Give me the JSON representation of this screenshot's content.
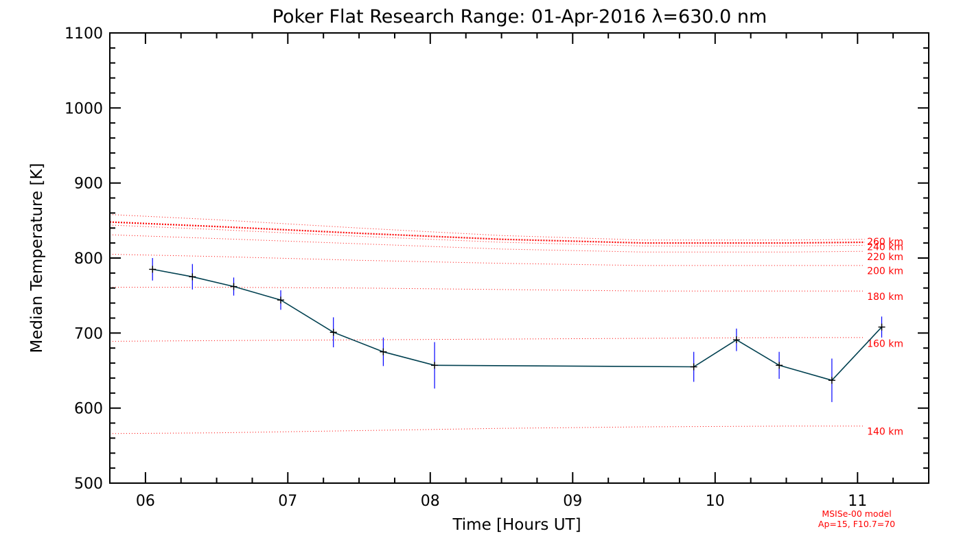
{
  "chart_data": {
    "type": "line",
    "title": "Poker Flat Research Range: 01-Apr-2016 λ=630.0 nm",
    "xlabel": "Time [Hours UT]",
    "ylabel": "Median Temperature [K]",
    "xlim": [
      5.75,
      11.5
    ],
    "ylim": [
      500,
      1100
    ],
    "xticks": [
      6,
      7,
      8,
      9,
      10,
      11
    ],
    "xtick_labels": [
      "06",
      "07",
      "08",
      "09",
      "10",
      "11"
    ],
    "yticks": [
      500,
      600,
      700,
      800,
      900,
      1000,
      1100
    ],
    "ytick_labels": [
      "500",
      "600",
      "700",
      "800",
      "900",
      "1000",
      "1100"
    ],
    "series": [
      {
        "name": "Median Temperature",
        "color": "#004050",
        "errorbar_color": "#0000ff",
        "x": [
          6.05,
          6.33,
          6.62,
          6.95,
          7.32,
          7.67,
          8.03,
          9.85,
          10.15,
          10.45,
          10.82,
          11.17
        ],
        "y": [
          785,
          775,
          762,
          744,
          701,
          675,
          657,
          655,
          691,
          657,
          637,
          708
        ],
        "err": [
          15,
          17,
          12,
          13,
          20,
          19,
          31,
          20,
          15,
          18,
          29,
          14
        ]
      }
    ],
    "model_curves": {
      "color": "#ff0000",
      "x": [
        5.75,
        6.5,
        7.5,
        8.5,
        9.5,
        10.5,
        11.05
      ],
      "curves": [
        {
          "label": "140 km",
          "y": [
            566,
            567,
            570,
            573,
            575,
            576,
            576
          ]
        },
        {
          "label": "160 km",
          "y": [
            689,
            690,
            691,
            692,
            693,
            694,
            694
          ]
        },
        {
          "label": "180 km",
          "y": [
            761,
            761,
            760,
            758,
            756,
            756,
            756
          ]
        },
        {
          "label": "200 km",
          "y": [
            805,
            802,
            797,
            793,
            790,
            790,
            790
          ]
        },
        {
          "label": "220 km",
          "y": [
            831,
            826,
            819,
            812,
            808,
            808,
            809
          ]
        },
        {
          "label": "240 km",
          "y": [
            844,
            838,
            829,
            821,
            816,
            816,
            817
          ]
        },
        {
          "label": "260 km",
          "y": [
            858,
            851,
            840,
            830,
            824,
            824,
            825
          ]
        },
        {
          "label": "",
          "y": [
            848,
            842,
            833,
            825,
            820,
            820,
            821
          ],
          "bold": true
        }
      ],
      "labels": [
        {
          "text": "260 km",
          "y": 822
        },
        {
          "text": "240 km",
          "y": 815
        },
        {
          "text": "220 km",
          "y": 802
        },
        {
          "text": "200 km",
          "y": 783
        },
        {
          "text": "180 km",
          "y": 749
        },
        {
          "text": "160 km",
          "y": 686
        },
        {
          "text": "140 km",
          "y": 569
        }
      ]
    },
    "annotations": [
      "MSISe-00 model",
      "Ap=15, F10.7=70"
    ],
    "annotation_color": "#ff0000",
    "grid": false
  }
}
